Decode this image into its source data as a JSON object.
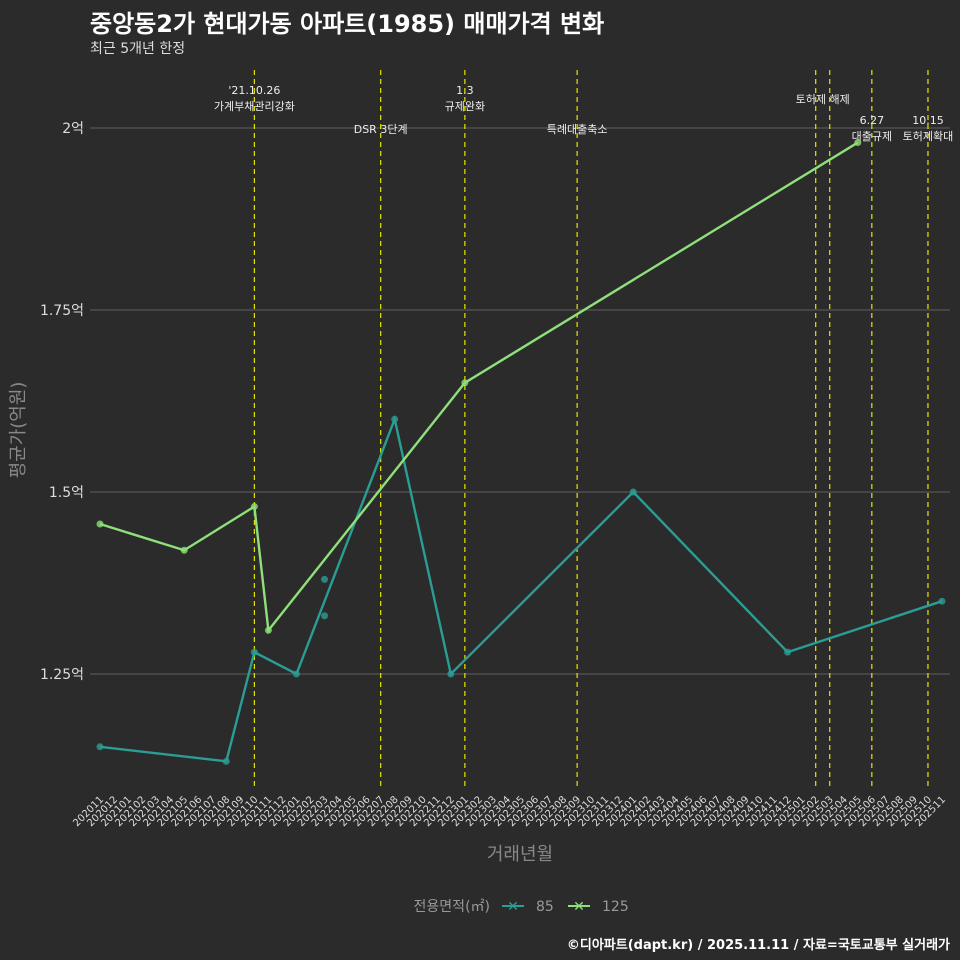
{
  "chart_data": {
    "type": "line",
    "title": "중앙동2가 현대가동 아파트(1985) 매매가격 변화",
    "subtitle": "최근 5개년 한정",
    "xlabel": "거래년월",
    "ylabel": "평균가(억원)",
    "x": [
      "202011",
      "202012",
      "202101",
      "202102",
      "202103",
      "202104",
      "202105",
      "202106",
      "202107",
      "202108",
      "202109",
      "202110",
      "202111",
      "202112",
      "202201",
      "202202",
      "202203",
      "202204",
      "202205",
      "202206",
      "202207",
      "202208",
      "202209",
      "202210",
      "202211",
      "202212",
      "202301",
      "202302",
      "202303",
      "202304",
      "202305",
      "202306",
      "202307",
      "202308",
      "202309",
      "202310",
      "202311",
      "202312",
      "202401",
      "202402",
      "202403",
      "202404",
      "202405",
      "202406",
      "202407",
      "202408",
      "202409",
      "202410",
      "202411",
      "202412",
      "202501",
      "202502",
      "202503",
      "202504",
      "202505",
      "202506",
      "202507",
      "202508",
      "202509",
      "202510",
      "202511"
    ],
    "ylim": [
      1.09,
      2.08
    ],
    "yticks": [
      {
        "v": 1.25,
        "label": "1.25억"
      },
      {
        "v": 1.5,
        "label": "1.5억"
      },
      {
        "v": 1.75,
        "label": "1.75억"
      },
      {
        "v": 2.0,
        "label": "2억"
      }
    ],
    "legend_title": "전용면적(㎡)",
    "legend_position": "bottom",
    "series": [
      {
        "name": "85",
        "color": "#2a9d94",
        "points": [
          [
            "202011",
            1.15
          ],
          [
            "202108",
            1.13
          ],
          [
            "202110",
            1.28
          ],
          [
            "202201",
            1.25
          ],
          [
            "202208",
            1.6
          ],
          [
            "202212",
            1.25
          ],
          [
            "202401",
            1.5
          ],
          [
            "202412",
            1.28
          ],
          [
            "202511",
            1.35
          ]
        ],
        "extra_points": [
          [
            "202203",
            1.38
          ],
          [
            "202203",
            1.33
          ]
        ]
      },
      {
        "name": "125",
        "color": "#8fe07a",
        "points": [
          [
            "202011",
            1.456
          ],
          [
            "202105",
            1.42
          ],
          [
            "202110",
            1.48
          ],
          [
            "202111",
            1.31
          ],
          [
            "202301",
            1.65
          ],
          [
            "202505",
            1.98
          ]
        ],
        "extra_points": []
      }
    ],
    "events": [
      {
        "x": "202110",
        "lines": [
          "'21.10.26",
          "가계부채관리강화"
        ],
        "row": 0
      },
      {
        "x": "202207",
        "lines": [
          "DSR 3단계"
        ],
        "row": 2
      },
      {
        "x": "202301",
        "lines": [
          "1.3",
          "규제완화"
        ],
        "row": 0
      },
      {
        "x": "202309",
        "lines": [
          "특례대출축소"
        ],
        "row": 2
      },
      {
        "x": "202502",
        "lines": [],
        "row": 0
      },
      {
        "x": "202503",
        "lines": [
          "토허제 해제"
        ],
        "row": 1,
        "offset": -0.5
      },
      {
        "x": "202506",
        "lines": [
          "6.27",
          "대출규제"
        ],
        "row": 3
      },
      {
        "x": "202510",
        "lines": [
          "10.15",
          "토허제확대"
        ],
        "row": 3
      }
    ]
  },
  "credit": "©디아파트(dapt.kr) / 2025.11.11 / 자료=국토교통부 실거래가"
}
